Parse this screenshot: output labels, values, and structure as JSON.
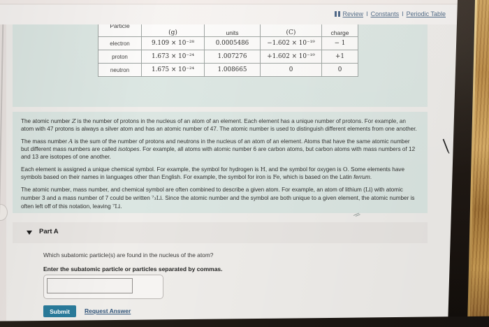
{
  "header": {
    "links": [
      "Review",
      "Constants",
      "Periodic Table"
    ],
    "separator": "I"
  },
  "icons": {
    "review": "double-bars",
    "part_a_collapse": "triangle-down",
    "resize_handle": "diagonal-lines",
    "cursor": "pointer"
  },
  "particle_table": {
    "columns": [
      "Particle",
      "(g)",
      "units",
      "(C)",
      "charge"
    ],
    "rows": [
      {
        "particle": "electron",
        "mass_g": "9.109 × 10⁻²⁸",
        "mass_units": "0.0005486",
        "charge_c": "−1.602 × 10⁻¹⁹",
        "charge": "− 1"
      },
      {
        "particle": "proton",
        "mass_g": "1.673 × 10⁻²⁴",
        "mass_units": "1.007276",
        "charge_c": "+1.602 × 10⁻¹⁹",
        "charge": "+1"
      },
      {
        "particle": "neutron",
        "mass_g": "1.675 × 10⁻²⁴",
        "mass_units": "1.008665",
        "charge_c": "0",
        "charge": "0"
      }
    ]
  },
  "intro": {
    "paragraphs": [
      [
        {
          "t": "The atomic number "
        },
        {
          "t": "Z",
          "s": "mi"
        },
        {
          "t": " is the number of protons in the nucleus of an atom of an element. Each element has a unique number of protons. For example, an atom with 47 protons is always a silver atom and has an atomic number of 47. The atomic number is used to distinguish different elements from one another."
        }
      ],
      [
        {
          "t": "The mass number "
        },
        {
          "t": "A",
          "s": "mi"
        },
        {
          "t": " is the sum of the number of protons and neutrons in the nucleus of an atom of an element. Atoms that have the same atomic number but different mass numbers are called "
        },
        {
          "t": "isotopes",
          "s": "i"
        },
        {
          "t": ". For example, all atoms with atomic number 6 are carbon atoms, but carbon atoms with mass numbers of 12 and 13 are isotopes of one another."
        }
      ],
      [
        {
          "t": "Each element is assigned a unique chemical symbol. For example, the symbol for hydrogen is "
        },
        {
          "t": "H",
          "s": "m"
        },
        {
          "t": ", and the symbol for oxygen is "
        },
        {
          "t": "O",
          "s": "m"
        },
        {
          "t": ". Some elements have symbols based on their names in languages other than English. For example, the symbol for iron is "
        },
        {
          "t": "Fe",
          "s": "m"
        },
        {
          "t": ", which is based on the Latin "
        },
        {
          "t": "ferrum",
          "s": "i"
        },
        {
          "t": "."
        }
      ],
      [
        {
          "t": "The atomic number, mass number, and chemical symbol are often combined to describe a given atom. For example, an atom of lithium ("
        },
        {
          "t": "Li",
          "s": "m"
        },
        {
          "t": ") with atomic number 3 and a mass number of 7 could be written "
        },
        {
          "t": "⁷₃Li",
          "s": "m"
        },
        {
          "t": ". Since the atomic number and the symbol are both unique to a given element, the atomic number is often left off of this notation, leaving "
        },
        {
          "t": "⁷Li",
          "s": "m"
        },
        {
          "t": "."
        }
      ]
    ]
  },
  "part_a": {
    "title": "Part A",
    "question": "Which subatomic particle(s) are found in the nucleus of the atom?",
    "instruction": "Enter the subatomic particle or particles separated by commas.",
    "answer_value": "",
    "submit_label": "Submit",
    "request_answer_label": "Request Answer"
  },
  "colors": {
    "page_bg": "#efedea",
    "panel_teal": "#dbe6e2",
    "parta_bar_bg": "#e8e5e2",
    "table_border": "#9aa19e",
    "link_blue": "#44607f",
    "request_link_blue": "#2f5379",
    "submit_bg": "#2a7b9b",
    "bezel_dark": "#211b16",
    "wood_gold": "#b9873f"
  }
}
